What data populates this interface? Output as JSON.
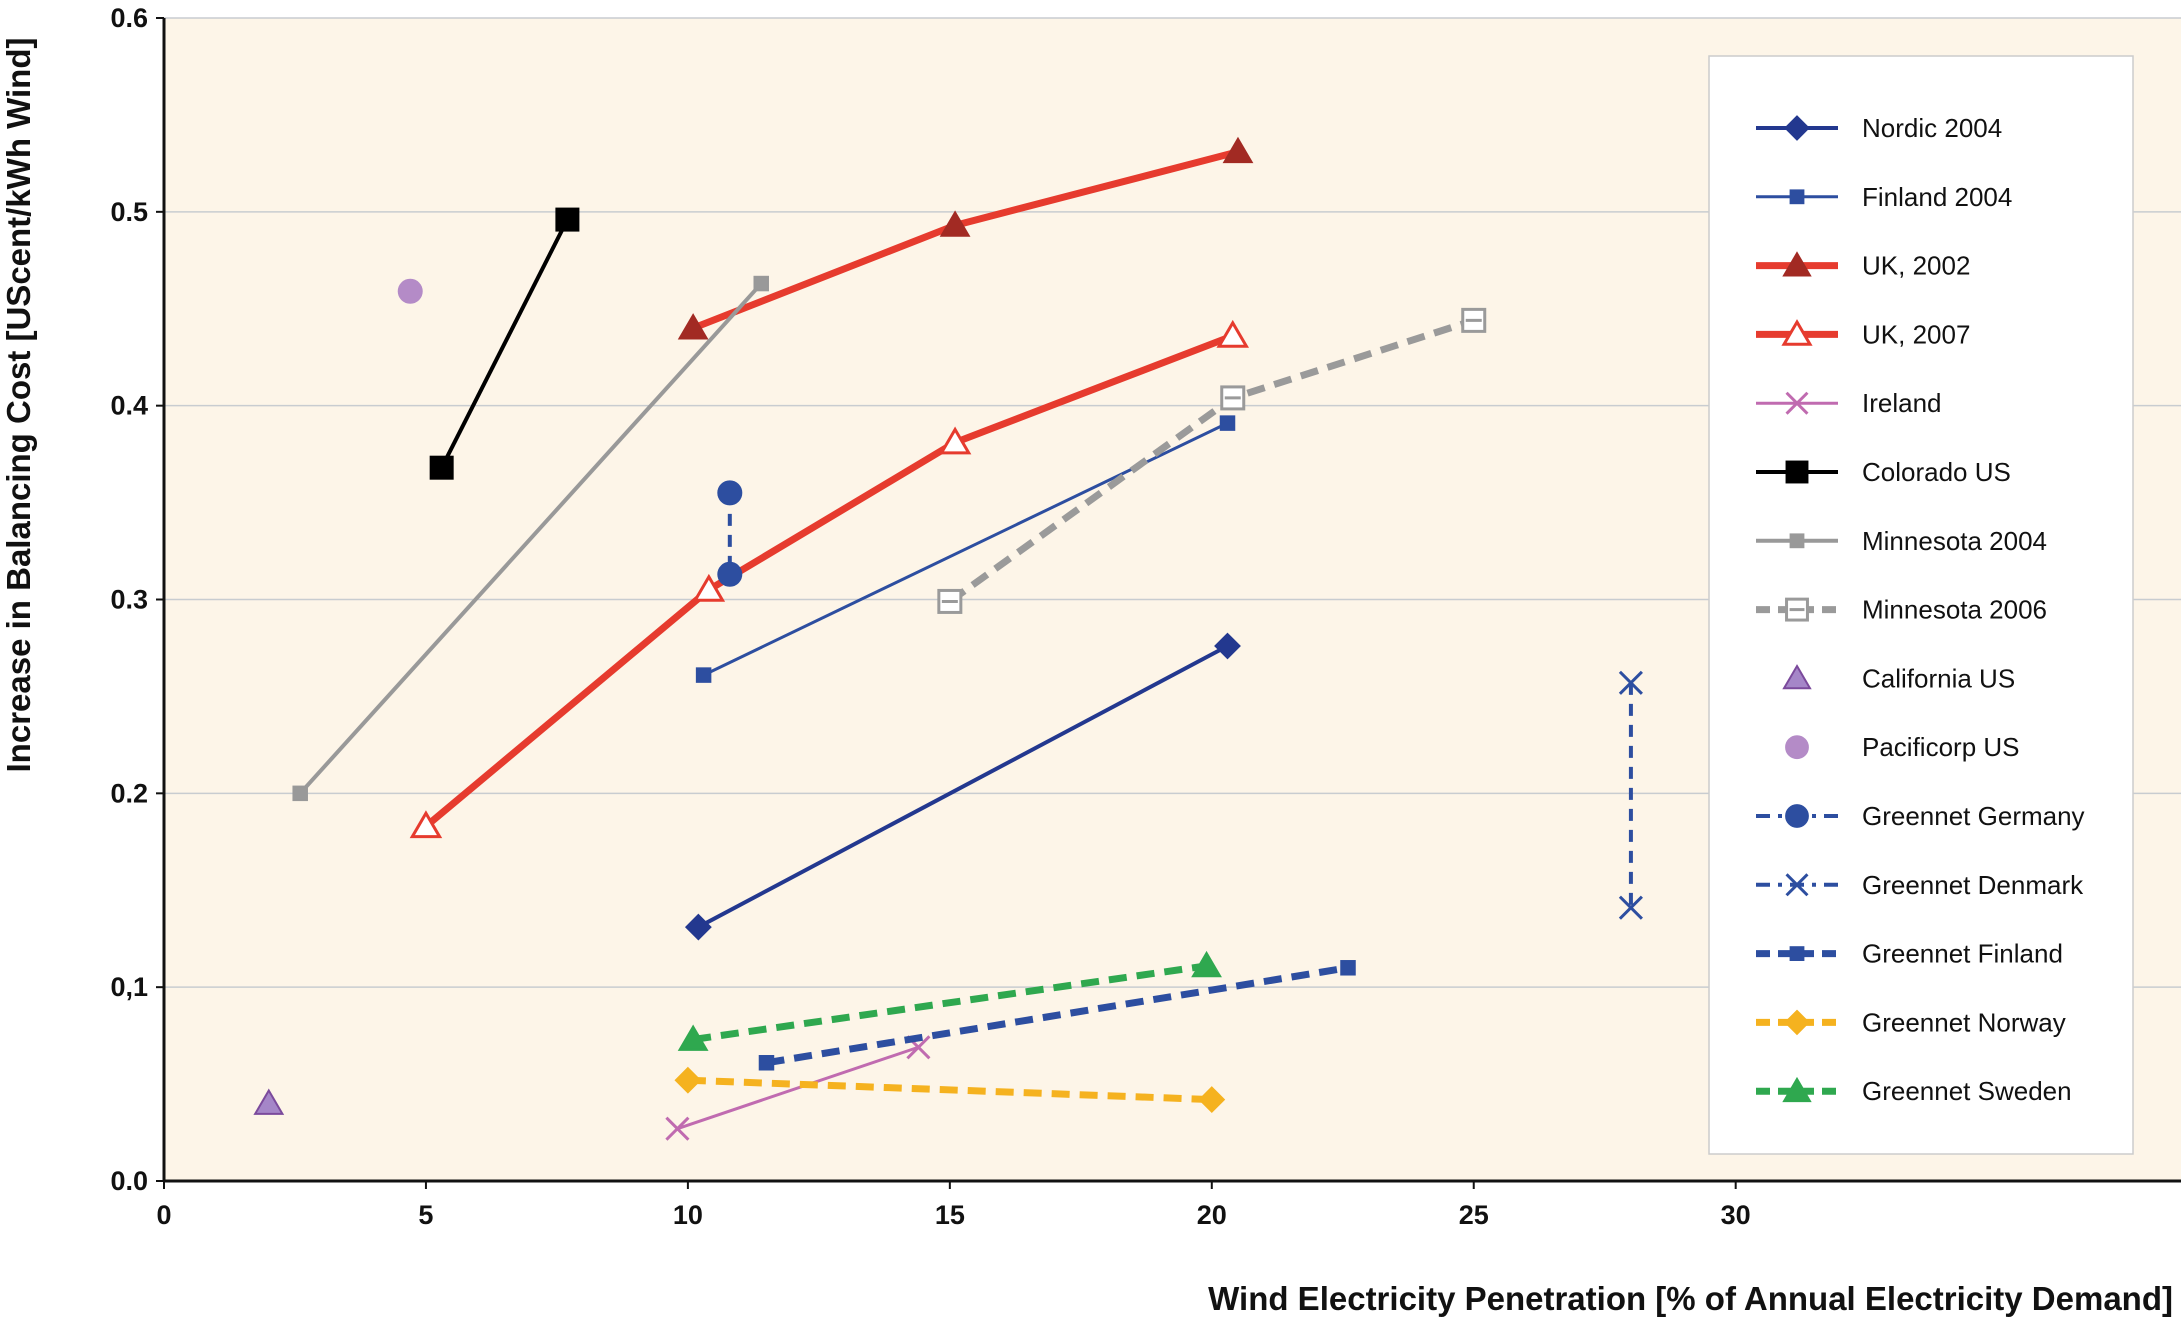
{
  "chart_data": {
    "type": "scatter",
    "xlabel": "Wind Electricity Penetration [% of Annual Electricity Demand]",
    "ylabel": "Increase in Balancing Cost [UScent/kWh Wind]",
    "xlim": [
      0,
      38.5
    ],
    "ylim": [
      0,
      0.6
    ],
    "x_ticks": [
      0,
      5,
      10,
      15,
      20,
      25,
      30
    ],
    "x_tick_labels": [
      "0",
      "5",
      "10",
      "15",
      "20",
      "25",
      "30"
    ],
    "y_ticks": [
      0.0,
      0.1,
      0.2,
      0.3,
      0.4,
      0.5,
      0.6
    ],
    "y_tick_labels": [
      "0.0",
      "0,1",
      "0.2",
      "0.3",
      "0.4",
      "0.5",
      "0.6"
    ],
    "grid": "horizontal",
    "plot_background": "#fdf5e8",
    "legend_position": "right",
    "series": [
      {
        "name": "Nordic 2004",
        "color": "#23388f",
        "marker": "diamond",
        "marker_fill": "filled",
        "line": "solid",
        "line_width": "medium",
        "points": [
          {
            "x": 10.2,
            "y": 0.131
          },
          {
            "x": 20.3,
            "y": 0.276
          }
        ]
      },
      {
        "name": "Finland 2004",
        "color": "#2d4ea0",
        "marker": "square-small",
        "marker_fill": "filled",
        "line": "solid",
        "line_width": "thin",
        "points": [
          {
            "x": 10.3,
            "y": 0.261
          },
          {
            "x": 20.3,
            "y": 0.391
          }
        ]
      },
      {
        "name": "UK, 2002",
        "color": "#e63b2e",
        "marker_color": "#a22a23",
        "marker": "triangle",
        "marker_fill": "filled",
        "line": "solid",
        "line_width": "thick",
        "points": [
          {
            "x": 10.1,
            "y": 0.44
          },
          {
            "x": 15.1,
            "y": 0.493
          },
          {
            "x": 20.5,
            "y": 0.531
          }
        ]
      },
      {
        "name": "UK, 2007",
        "color": "#e63b2e",
        "marker": "triangle",
        "marker_fill": "open",
        "line": "solid",
        "line_width": "thick",
        "points": [
          {
            "x": 5.0,
            "y": 0.183
          },
          {
            "x": 10.4,
            "y": 0.305
          },
          {
            "x": 15.1,
            "y": 0.381
          },
          {
            "x": 20.4,
            "y": 0.436
          }
        ]
      },
      {
        "name": "Ireland",
        "color": "#c06bb0",
        "marker": "x",
        "marker_fill": "filled",
        "line": "solid",
        "line_width": "thin",
        "points": [
          {
            "x": 9.8,
            "y": 0.027
          },
          {
            "x": 14.4,
            "y": 0.069
          }
        ]
      },
      {
        "name": "Colorado US",
        "color": "#000000",
        "marker": "square",
        "marker_fill": "filled",
        "line": "solid",
        "line_width": "medium",
        "points": [
          {
            "x": 5.3,
            "y": 0.368
          },
          {
            "x": 7.7,
            "y": 0.496
          }
        ]
      },
      {
        "name": "Minnesota 2004",
        "color": "#999999",
        "marker": "square-small",
        "marker_fill": "filled",
        "line": "solid",
        "line_width": "medium",
        "points": [
          {
            "x": 2.6,
            "y": 0.2
          },
          {
            "x": 11.4,
            "y": 0.463
          }
        ]
      },
      {
        "name": "Minnesota 2006",
        "color": "#9a9a9a",
        "marker": "square",
        "marker_fill": "open",
        "line": "dashed",
        "line_width": "thick",
        "points": [
          {
            "x": 15.0,
            "y": 0.299
          },
          {
            "x": 20.4,
            "y": 0.404
          },
          {
            "x": 25.0,
            "y": 0.444
          }
        ]
      },
      {
        "name": "California US",
        "color": "#7b4a9c",
        "marker_color": "#a586c8",
        "marker": "triangle",
        "marker_fill": "filled",
        "line": "none",
        "line_width": "medium",
        "points": [
          {
            "x": 2.0,
            "y": 0.04
          }
        ]
      },
      {
        "name": "Pacificorp US",
        "color": "#b48bc7",
        "marker": "circle",
        "marker_fill": "filled",
        "line": "none",
        "line_width": "medium",
        "points": [
          {
            "x": 4.7,
            "y": 0.459
          }
        ]
      },
      {
        "name": "Greennet Germany",
        "color": "#2d4ea0",
        "marker": "circle",
        "marker_fill": "filled",
        "line": "dashed",
        "line_width": "medium",
        "points": [
          {
            "x": 10.8,
            "y": 0.355
          },
          {
            "x": 10.8,
            "y": 0.313
          }
        ]
      },
      {
        "name": "Greennet Denmark",
        "color": "#2d4ea0",
        "marker": "x",
        "marker_fill": "filled",
        "line": "dashed",
        "line_width": "medium",
        "points": [
          {
            "x": 28.0,
            "y": 0.257
          },
          {
            "x": 28.0,
            "y": 0.141
          }
        ]
      },
      {
        "name": "Greennet Finland",
        "color": "#2d4ea0",
        "marker": "square-small",
        "marker_fill": "filled",
        "line": "dashed",
        "line_width": "thick",
        "points": [
          {
            "x": 11.5,
            "y": 0.061
          },
          {
            "x": 22.6,
            "y": 0.11
          }
        ]
      },
      {
        "name": "Greennet Norway",
        "color": "#f5b21f",
        "marker": "diamond",
        "marker_fill": "filled",
        "line": "dashed",
        "line_width": "thick",
        "points": [
          {
            "x": 10.0,
            "y": 0.052
          },
          {
            "x": 20.0,
            "y": 0.042
          }
        ]
      },
      {
        "name": "Greennet Sweden",
        "color": "#2fa84f",
        "marker": "triangle",
        "marker_fill": "filled",
        "line": "dashed",
        "line_width": "thick",
        "points": [
          {
            "x": 10.1,
            "y": 0.073
          },
          {
            "x": 19.9,
            "y": 0.111
          }
        ]
      }
    ]
  }
}
